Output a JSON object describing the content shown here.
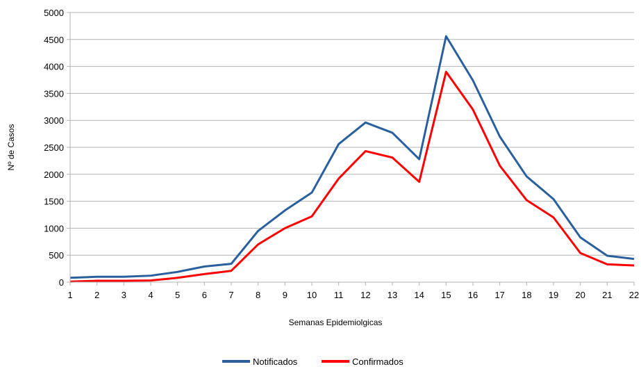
{
  "chart_data": {
    "type": "line",
    "title": "",
    "xlabel": "Semanas Epidemiolgicas",
    "ylabel": "Nº de Casos",
    "x": [
      1,
      2,
      3,
      4,
      5,
      6,
      7,
      8,
      9,
      10,
      11,
      12,
      13,
      14,
      15,
      16,
      17,
      18,
      19,
      20,
      21,
      22
    ],
    "xtick_labels": [
      "1",
      "2",
      "3",
      "4",
      "5",
      "6",
      "7",
      "8",
      "9",
      "10",
      "11",
      "12",
      "13",
      "14",
      "15",
      "16",
      "17",
      "18",
      "19",
      "20",
      "21",
      "22"
    ],
    "ylim": [
      0,
      5000
    ],
    "ytick_labels": [
      "0",
      "500",
      "1000",
      "1500",
      "2000",
      "2500",
      "3000",
      "3500",
      "4000",
      "4500",
      "5000"
    ],
    "grid": true,
    "legend_position": "bottom-center",
    "series": [
      {
        "name": "Notificados",
        "color": "#2a5f9e",
        "values": [
          80,
          100,
          100,
          120,
          190,
          290,
          340,
          950,
          1330,
          1660,
          2560,
          2960,
          2770,
          2280,
          4560,
          3740,
          2700,
          1960,
          1540,
          830,
          490,
          430
        ]
      },
      {
        "name": "Confirmados",
        "color": "#ff0000",
        "values": [
          10,
          25,
          25,
          30,
          80,
          150,
          210,
          700,
          1000,
          1220,
          1920,
          2430,
          2310,
          1860,
          3900,
          3200,
          2160,
          1520,
          1200,
          540,
          330,
          310
        ]
      }
    ]
  }
}
